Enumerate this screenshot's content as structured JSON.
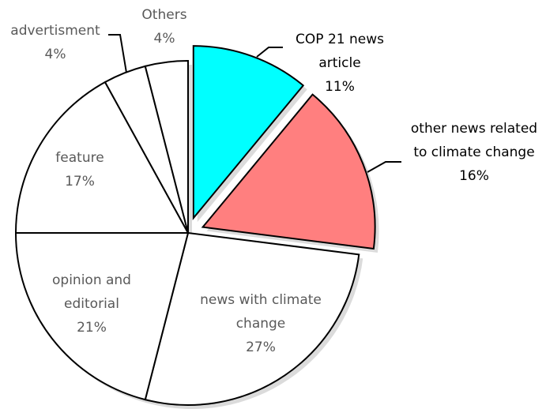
{
  "chart_data": {
    "type": "pie",
    "slices": [
      {
        "id": "cop21",
        "label_lines": [
          "COP 21 news",
          "article"
        ],
        "value_text": "11%",
        "value": 11,
        "color": "#00FFFF",
        "exploded": true
      },
      {
        "id": "other-news",
        "label_lines": [
          "other news related",
          "to climate change"
        ],
        "value_text": "16%",
        "value": 16,
        "color": "#FF7F7F",
        "exploded": true
      },
      {
        "id": "news-climate",
        "label_lines": [
          "news with climate",
          "change"
        ],
        "value_text": "27%",
        "value": 27,
        "color": "#FFFFFF",
        "exploded": false
      },
      {
        "id": "opinion",
        "label_lines": [
          "opinion and",
          "editorial"
        ],
        "value_text": "21%",
        "value": 21,
        "color": "#FFFFFF",
        "exploded": false
      },
      {
        "id": "feature",
        "label_lines": [
          "feature"
        ],
        "value_text": "17%",
        "value": 17,
        "color": "#FFFFFF",
        "exploded": false
      },
      {
        "id": "advertisment",
        "label_lines": [
          "advertisment"
        ],
        "value_text": "4%",
        "value": 4,
        "color": "#FFFFFF",
        "exploded": false
      },
      {
        "id": "others",
        "label_lines": [
          "Others"
        ],
        "value_text": "4%",
        "value": 4,
        "color": "#FFFFFF",
        "exploded": false
      }
    ]
  }
}
